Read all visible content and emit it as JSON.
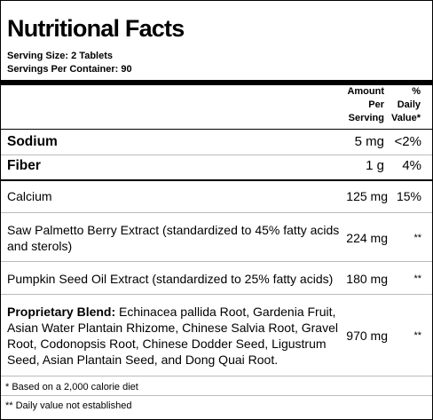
{
  "title": "Nutritional Facts",
  "serving_size": "Serving Size:  2 Tablets",
  "servings_per_container": "Servings Per Container:  90",
  "header": {
    "amount_line1": "Amount",
    "amount_line2": "Per",
    "amount_line3": "Serving",
    "dv_line1": "%",
    "dv_line2": "Daily",
    "dv_line3": "Value*"
  },
  "nutrients": [
    {
      "name": "Sodium",
      "amount": "5 mg",
      "dv": "<2%"
    },
    {
      "name": "Fiber",
      "amount": "1 g",
      "dv": "4%"
    },
    {
      "name": "Calcium",
      "amount": "125 mg",
      "dv": "15%"
    },
    {
      "name_line1": "Saw Palmetto Berry Extract (standardized to 45% fatty acids",
      "name_line2": "and sterols)",
      "amount": "224 mg",
      "dv": "**"
    },
    {
      "name": "Pumpkin Seed Oil Extract (standardized to 25% fatty acids)",
      "amount": "180 mg",
      "dv": "**"
    },
    {
      "label": "Proprietary Blend:",
      "line1": " Echinacea pallida Root, Gardenia Fruit,",
      "line2": "Asian Water Plantain Rhizome, Chinese Salvia Root, Gravel",
      "line3": "Root, Codonopsis Root, Chinese Dodder Seed, Ligustrum",
      "line4": "Seed, Asian Plantain Seed, and Dong Quai Root.",
      "amount": "970 mg",
      "dv": "**"
    }
  ],
  "footnotes": {
    "daily_value": "* Based on a 2,000 calorie diet",
    "not_established": "** Daily value not established"
  }
}
